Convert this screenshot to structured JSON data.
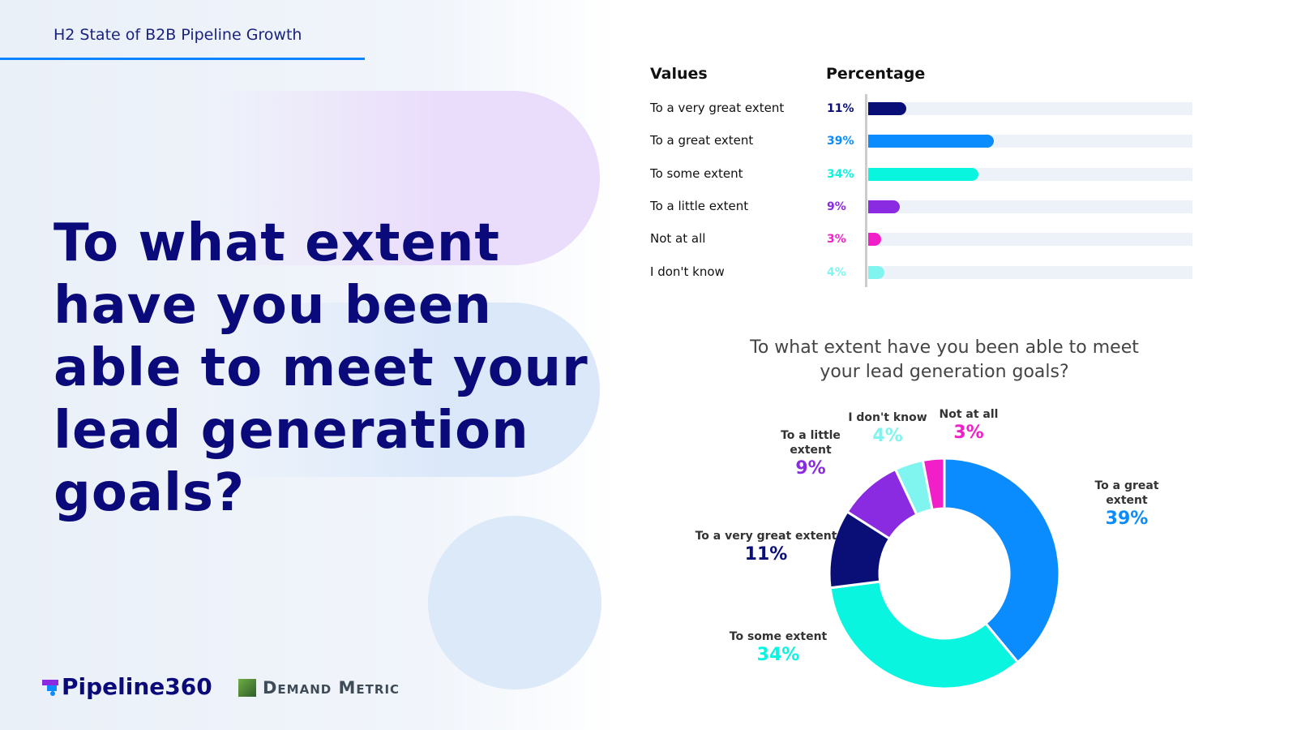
{
  "header": {
    "title": "H2 State of B2B Pipeline Growth"
  },
  "question": "To what extent have you been able to meet your lead generation goals?",
  "logos": {
    "pipeline": "Pipeline360",
    "demand_metric": "Demand Metric"
  },
  "colors": {
    "very_great": "#0a0f78",
    "great": "#0a8cff",
    "some": "#0af5e0",
    "little": "#8a2be2",
    "not_at_all": "#f01fc8",
    "dont_know": "#80f5f0",
    "title": "#0a0a7a"
  },
  "chart_data": [
    {
      "type": "bar",
      "orientation": "horizontal",
      "headers": [
        "Values",
        "Percentage"
      ],
      "categories": [
        "To a very great extent",
        "To a great extent",
        "To some extent",
        "To a little extent",
        "Not at all",
        "I don't know"
      ],
      "values": [
        11,
        39,
        34,
        9,
        3,
        4
      ],
      "labels": [
        "11%",
        "39%",
        "34%",
        "9%",
        "3%",
        "4%"
      ],
      "xlim": [
        0,
        100
      ]
    },
    {
      "type": "pie",
      "donut": true,
      "title": "To what extent have you been able to meet your lead generation goals?",
      "categories": [
        "To a great extent",
        "To some extent",
        "To a very great extent",
        "To a little extent",
        "I don't know",
        "Not at all"
      ],
      "values": [
        39,
        34,
        11,
        9,
        4,
        3
      ],
      "labels": [
        "39%",
        "34%",
        "11%",
        "9%",
        "4%",
        "3%"
      ]
    }
  ]
}
